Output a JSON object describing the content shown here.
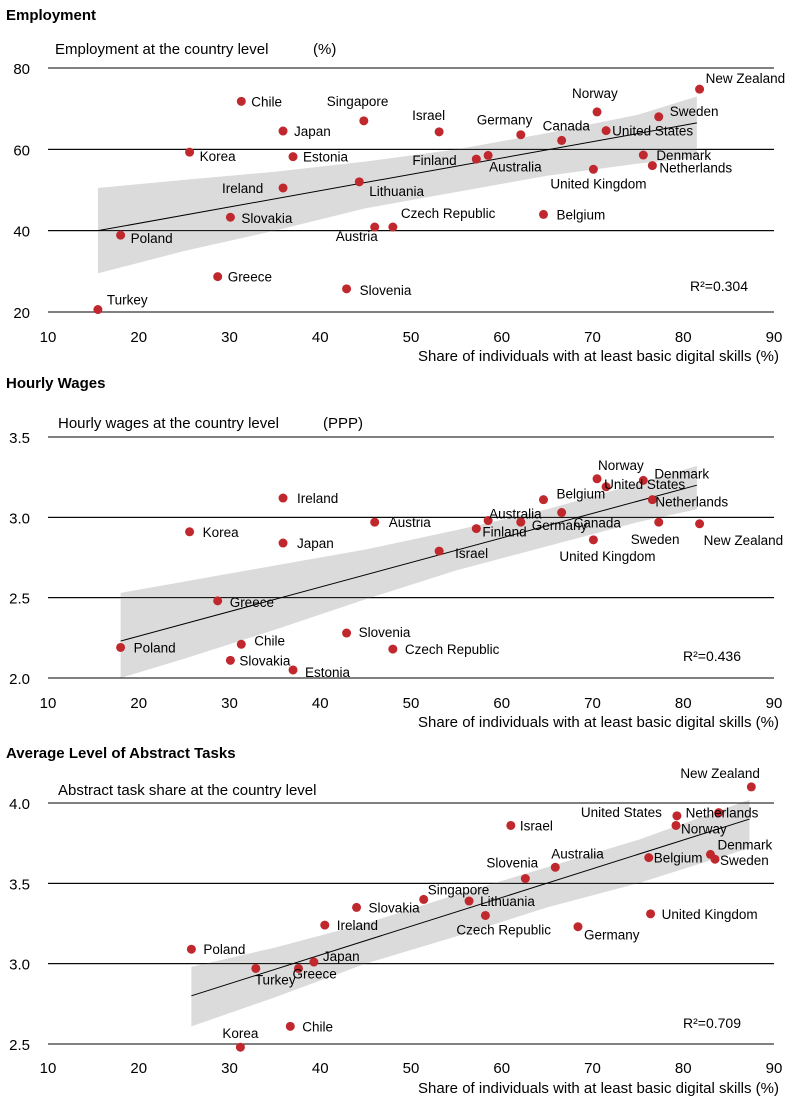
{
  "chart_data": [
    {
      "type": "scatter",
      "panel_title": "Employment",
      "title": "Employment at the country level",
      "title_unit": "(%)",
      "xlabel": "Share of individuals with at least basic digital skills (%)",
      "ylabel": "",
      "xlim": [
        10,
        90
      ],
      "ylim": [
        20,
        80
      ],
      "xticks": [
        "10",
        "20",
        "30",
        "40",
        "50",
        "60",
        "70",
        "80",
        "90"
      ],
      "yticks": [
        "20",
        "40",
        "60",
        "80"
      ],
      "r2_text": "R²=0.304",
      "colors": {
        "point": "#c0282d",
        "band": "#d9d9d9",
        "line": "#000000"
      },
      "fit": {
        "x": [
          15.5,
          81.5
        ],
        "y": [
          40,
          66.5
        ]
      },
      "band": {
        "x": [
          15.5,
          25,
          35,
          45,
          55,
          65,
          75,
          81.5
        ],
        "upper": [
          50.5,
          52.5,
          54.5,
          57,
          60,
          64,
          68.5,
          73
        ],
        "lower": [
          29.5,
          35,
          40,
          45.5,
          49.5,
          53.5,
          56.5,
          58
        ]
      },
      "points": [
        {
          "label": "New Zealand",
          "x": 81.8,
          "y": 74.8
        },
        {
          "label": "Chile",
          "x": 31.3,
          "y": 71.8
        },
        {
          "label": "Norway",
          "x": 70.5,
          "y": 69.2
        },
        {
          "label": "Sweden",
          "x": 77.3,
          "y": 68.0
        },
        {
          "label": "Singapore",
          "x": 44.8,
          "y": 67.0
        },
        {
          "label": "Japan",
          "x": 35.9,
          "y": 64.5
        },
        {
          "label": "Israel",
          "x": 53.1,
          "y": 64.3
        },
        {
          "label": "United States",
          "x": 71.5,
          "y": 64.6
        },
        {
          "label": "Germany",
          "x": 62.1,
          "y": 63.6
        },
        {
          "label": "Canada",
          "x": 66.6,
          "y": 62.2
        },
        {
          "label": "Korea",
          "x": 25.6,
          "y": 59.3
        },
        {
          "label": "Estonia",
          "x": 37.0,
          "y": 58.2
        },
        {
          "label": "Finland",
          "x": 57.2,
          "y": 57.6
        },
        {
          "label": "Australia",
          "x": 58.5,
          "y": 58.5
        },
        {
          "label": "Denmark",
          "x": 75.6,
          "y": 58.6
        },
        {
          "label": "Netherlands",
          "x": 76.6,
          "y": 56.0
        },
        {
          "label": "United Kingdom",
          "x": 70.1,
          "y": 55.1
        },
        {
          "label": "Lithuania",
          "x": 44.3,
          "y": 52.0
        },
        {
          "label": "Ireland",
          "x": 35.9,
          "y": 50.5
        },
        {
          "label": "Slovakia",
          "x": 30.1,
          "y": 43.3
        },
        {
          "label": "Belgium",
          "x": 64.6,
          "y": 44.0
        },
        {
          "label": "Czech Republic",
          "x": 48.0,
          "y": 40.9
        },
        {
          "label": "Austria",
          "x": 46.0,
          "y": 40.9
        },
        {
          "label": "Poland",
          "x": 18.0,
          "y": 38.9
        },
        {
          "label": "Greece",
          "x": 28.7,
          "y": 28.7
        },
        {
          "label": "Slovenia",
          "x": 42.9,
          "y": 25.7
        },
        {
          "label": "Turkey",
          "x": 15.5,
          "y": 20.6
        }
      ]
    },
    {
      "type": "scatter",
      "panel_title": "Hourly Wages",
      "title": "Hourly wages at the country level",
      "title_unit": "(PPP)",
      "xlabel": "Share of individuals with at least basic digital skills (%)",
      "ylabel": "",
      "xlim": [
        10,
        90
      ],
      "ylim": [
        2.0,
        3.5
      ],
      "xticks": [
        "10",
        "20",
        "30",
        "40",
        "50",
        "60",
        "70",
        "80",
        "90"
      ],
      "yticks": [
        "2.0",
        "2.5",
        "3.0",
        "3.5"
      ],
      "r2_text": "R²=0.436",
      "colors": {
        "point": "#c0282d",
        "band": "#d9d9d9",
        "line": "#000000"
      },
      "fit": {
        "x": [
          18,
          81.5
        ],
        "y": [
          2.23,
          3.2
        ]
      },
      "band": {
        "x": [
          18,
          25,
          35,
          45,
          55,
          65,
          75,
          81.5
        ],
        "upper": [
          2.53,
          2.6,
          2.7,
          2.8,
          2.92,
          3.05,
          3.21,
          3.32
        ],
        "lower": [
          2.0,
          2.12,
          2.3,
          2.49,
          2.67,
          2.82,
          2.97,
          3.05
        ]
      },
      "points": [
        {
          "label": "Norway",
          "x": 70.5,
          "y": 3.24
        },
        {
          "label": "Denmark",
          "x": 75.6,
          "y": 3.23
        },
        {
          "label": "United States",
          "x": 71.5,
          "y": 3.19
        },
        {
          "label": "Ireland",
          "x": 35.9,
          "y": 3.12
        },
        {
          "label": "Belgium",
          "x": 64.6,
          "y": 3.11
        },
        {
          "label": "Netherlands",
          "x": 76.6,
          "y": 3.11
        },
        {
          "label": "Australia",
          "x": 58.5,
          "y": 2.98
        },
        {
          "label": "Canada",
          "x": 66.6,
          "y": 3.03
        },
        {
          "label": "Germany",
          "x": 62.1,
          "y": 2.97
        },
        {
          "label": "Austria",
          "x": 46.0,
          "y": 2.97
        },
        {
          "label": "Sweden",
          "x": 77.3,
          "y": 2.97
        },
        {
          "label": "New Zealand",
          "x": 81.8,
          "y": 2.96
        },
        {
          "label": "Finland",
          "x": 57.2,
          "y": 2.93
        },
        {
          "label": "Korea",
          "x": 25.6,
          "y": 2.91
        },
        {
          "label": "United Kingdom",
          "x": 70.1,
          "y": 2.86
        },
        {
          "label": "Japan",
          "x": 35.9,
          "y": 2.84
        },
        {
          "label": "Israel",
          "x": 53.1,
          "y": 2.79
        },
        {
          "label": "Greece",
          "x": 28.7,
          "y": 2.48
        },
        {
          "label": "Slovenia",
          "x": 42.9,
          "y": 2.28
        },
        {
          "label": "Chile",
          "x": 31.3,
          "y": 2.21
        },
        {
          "label": "Poland",
          "x": 18.0,
          "y": 2.19
        },
        {
          "label": "Czech Republic",
          "x": 48.0,
          "y": 2.18
        },
        {
          "label": "Slovakia",
          "x": 30.1,
          "y": 2.11
        },
        {
          "label": "Estonia",
          "x": 37.0,
          "y": 2.05
        }
      ]
    },
    {
      "type": "scatter",
      "panel_title": "Average Level of Abstract Tasks",
      "title": "Abstract task share at the country level",
      "title_unit": "",
      "xlabel": "Share of individuals with at least basic digital skills (%)",
      "ylabel": "",
      "xlim": [
        10,
        90
      ],
      "ylim": [
        2.5,
        4.0
      ],
      "xticks": [
        "10",
        "20",
        "30",
        "40",
        "50",
        "60",
        "70",
        "80",
        "90"
      ],
      "yticks": [
        "2.5",
        "3.0",
        "3.5",
        "4.0"
      ],
      "r2_text": "R²=0.709",
      "colors": {
        "point": "#c0282d",
        "band": "#d9d9d9",
        "line": "#000000"
      },
      "fit": {
        "x": [
          25.8,
          87.3
        ],
        "y": [
          2.8,
          3.9
        ]
      },
      "band": {
        "x": [
          25.8,
          35,
          45,
          55,
          65,
          75,
          87.3
        ],
        "upper": [
          2.98,
          3.1,
          3.25,
          3.43,
          3.6,
          3.77,
          4.02
        ],
        "lower": [
          2.61,
          2.79,
          3.0,
          3.17,
          3.35,
          3.5,
          3.72
        ]
      },
      "points": [
        {
          "label": "New Zealand",
          "x": 87.5,
          "y": 4.1
        },
        {
          "label": "Netherlands",
          "x": 83.9,
          "y": 3.94
        },
        {
          "label": "United States",
          "x": 79.3,
          "y": 3.92
        },
        {
          "label": "Norway",
          "x": 79.2,
          "y": 3.86
        },
        {
          "label": "Israel",
          "x": 61.0,
          "y": 3.86
        },
        {
          "label": "Denmark",
          "x": 83.0,
          "y": 3.68
        },
        {
          "label": "Sweden",
          "x": 83.5,
          "y": 3.65
        },
        {
          "label": "Belgium",
          "x": 76.2,
          "y": 3.66
        },
        {
          "label": "Australia",
          "x": 65.9,
          "y": 3.6
        },
        {
          "label": "Slovenia",
          "x": 62.6,
          "y": 3.53
        },
        {
          "label": "Singapore",
          "x": 51.4,
          "y": 3.4
        },
        {
          "label": "Lithuania",
          "x": 56.4,
          "y": 3.39
        },
        {
          "label": "Slovakia",
          "x": 44.0,
          "y": 3.35
        },
        {
          "label": "United Kingdom",
          "x": 76.4,
          "y": 3.31
        },
        {
          "label": "Czech Republic",
          "x": 58.2,
          "y": 3.3
        },
        {
          "label": "Ireland",
          "x": 40.5,
          "y": 3.24
        },
        {
          "label": "Germany",
          "x": 68.4,
          "y": 3.23
        },
        {
          "label": "Poland",
          "x": 25.8,
          "y": 3.09
        },
        {
          "label": "Japan",
          "x": 39.3,
          "y": 3.01
        },
        {
          "label": "Greece",
          "x": 37.6,
          "y": 2.97
        },
        {
          "label": "Turkey",
          "x": 32.9,
          "y": 2.97
        },
        {
          "label": "Chile",
          "x": 36.7,
          "y": 2.61
        },
        {
          "label": "Korea",
          "x": 31.2,
          "y": 2.48
        }
      ]
    }
  ]
}
